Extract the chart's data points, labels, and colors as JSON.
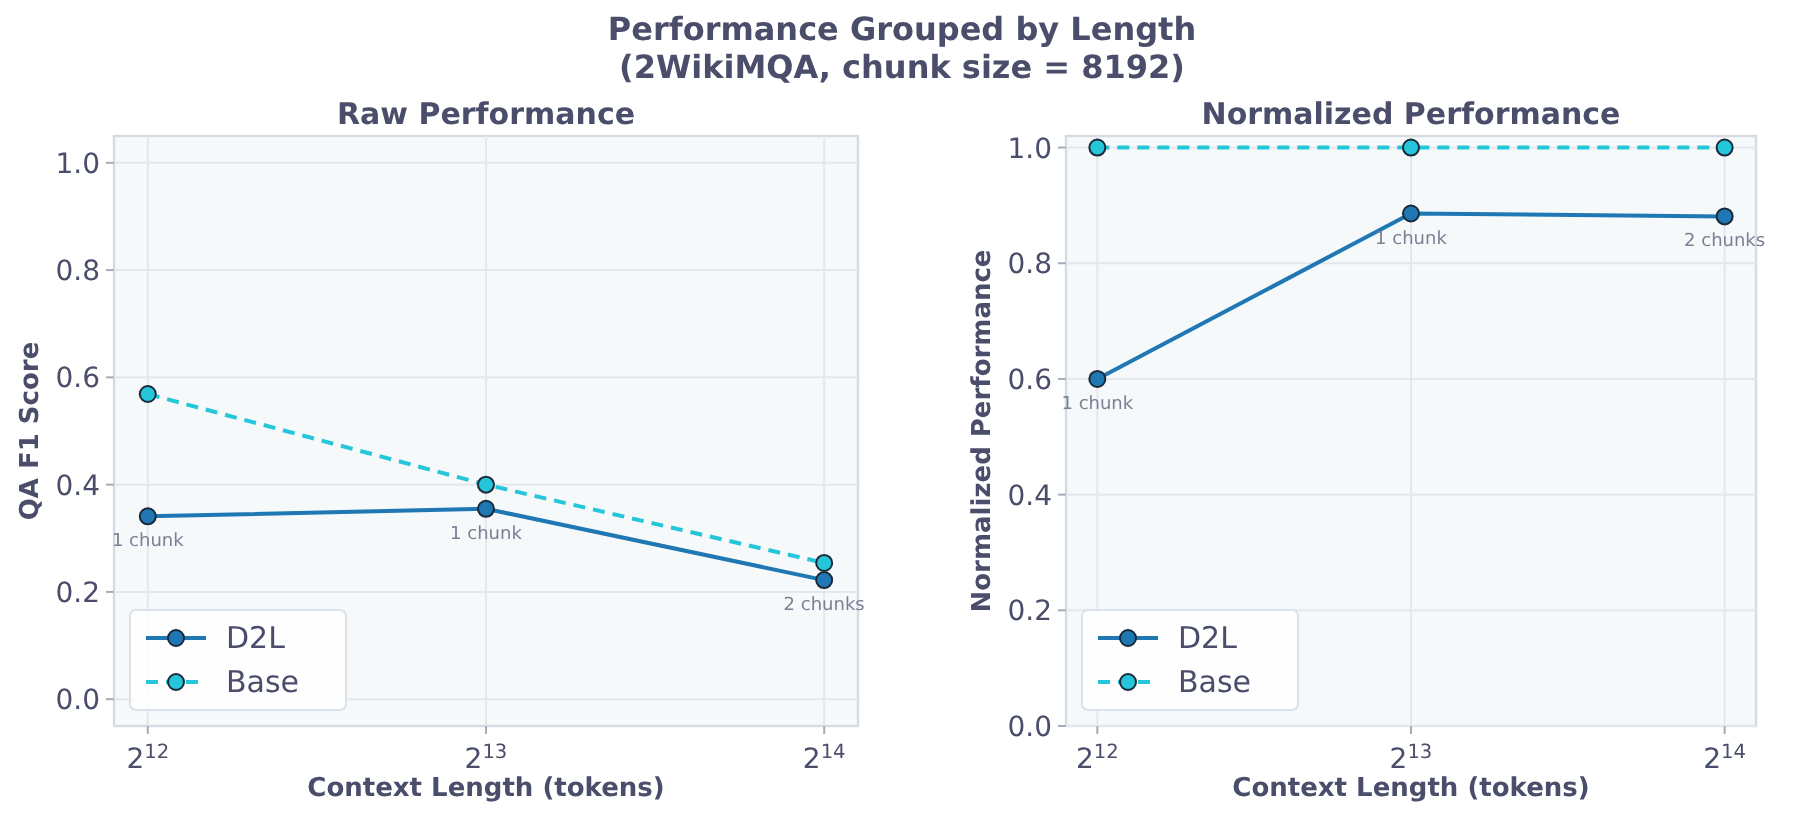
{
  "chart_data": [
    {
      "type": "line",
      "title": "Raw Performance",
      "xlabel": "Context Length (tokens)",
      "ylabel": "QA F1 Score",
      "log": "x",
      "xlim": [
        3822,
        17560
      ],
      "xticks": [
        {
          "value": 4096,
          "label": "2$^{12}$"
        },
        {
          "value": 8192,
          "label": "2$^{13}$"
        },
        {
          "value": 16384,
          "label": "2$^{14}$"
        }
      ],
      "ylim": [
        -0.05,
        1.05
      ],
      "yticks": [
        {
          "value": 0,
          "label": "0.0"
        },
        {
          "value": 0.2,
          "label": "0.2"
        },
        {
          "value": 0.4,
          "label": "0.4"
        },
        {
          "value": 0.6,
          "label": "0.6"
        },
        {
          "value": 0.8,
          "label": "0.8"
        },
        {
          "value": 1,
          "label": "1.0"
        }
      ],
      "x": [
        4096,
        8192,
        16384
      ],
      "grid": true,
      "legend": "bottom left",
      "marker": "circle",
      "series": [
        {
          "name": "D2L",
          "color": "#1f77b4",
          "values": [
            0.341,
            0.355,
            0.222
          ],
          "line_style": "solid"
        },
        {
          "name": "Base",
          "color": "#26c6da",
          "values": [
            0.569,
            0.4,
            0.254
          ],
          "line_style": "dashed"
        }
      ],
      "annotations": [
        "Performance Grouped by Length\n(2WikiMQA, chunk size = 8192)",
        {
          "text": "1 chunk",
          "x": 4096,
          "y": 0.341
        },
        {
          "text": "1 chunk",
          "x": 8192,
          "y": 0.355
        },
        {
          "text": "2 chunks",
          "x": 16384,
          "y": 0.222
        }
      ]
    },
    {
      "type": "line",
      "title": "Normalized Performance",
      "xlabel": "Context Length (tokens)",
      "ylabel": "Normalized Performance",
      "log": "x",
      "xlim": [
        3822,
        17560
      ],
      "xticks": [
        {
          "value": 4096,
          "label": "2$^{12}$"
        },
        {
          "value": 8192,
          "label": "2$^{13}$"
        },
        {
          "value": 16384,
          "label": "2$^{14}$"
        }
      ],
      "ylim": [
        0,
        1.02
      ],
      "yticks": [
        {
          "value": 0,
          "label": "0.0"
        },
        {
          "value": 0.2,
          "label": "0.2"
        },
        {
          "value": 0.4,
          "label": "0.4"
        },
        {
          "value": 0.6,
          "label": "0.6"
        },
        {
          "value": 0.8,
          "label": "0.8"
        },
        {
          "value": 1,
          "label": "1.0"
        }
      ],
      "x": [
        4096,
        8192,
        16384
      ],
      "grid": true,
      "legend": "bottom left",
      "marker": "circle",
      "series": [
        {
          "name": "D2L",
          "color": "#1f77b4",
          "values": [
            0.6,
            0.886,
            0.881
          ],
          "line_style": "solid"
        },
        {
          "name": "Base",
          "color": "#26c6da",
          "values": [
            1,
            1,
            1
          ],
          "line_style": "dashed"
        }
      ],
      "annotations": [
        {
          "text": "1 chunk",
          "x": 4096,
          "y": 0.6
        },
        {
          "text": "1 chunk",
          "x": 8192,
          "y": 0.886
        },
        {
          "text": "2 chunks",
          "x": 16384,
          "y": 0.881
        }
      ]
    }
  ]
}
